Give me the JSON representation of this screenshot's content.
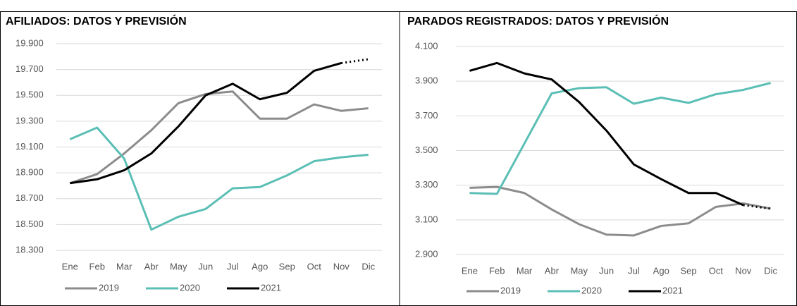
{
  "chart_data": [
    {
      "type": "line",
      "title": "AFILIADOS: DATOS Y PREVISIÓN",
      "categories": [
        "Ene",
        "Feb",
        "Mar",
        "Abr",
        "May",
        "Jun",
        "Jul",
        "Ago",
        "Sep",
        "Oct",
        "Nov",
        "Dic"
      ],
      "series": [
        {
          "name": "2019",
          "color": "#8c8c8c",
          "values": [
            18820,
            18890,
            19050,
            19230,
            19440,
            19510,
            19530,
            19320,
            19320,
            19430,
            19380,
            19400
          ]
        },
        {
          "name": "2020",
          "color": "#5bbfb5",
          "values": [
            19160,
            19250,
            19010,
            18460,
            18560,
            18620,
            18780,
            18790,
            18880,
            18990,
            19020,
            19040
          ]
        },
        {
          "name": "2021",
          "color": "#000000",
          "values": [
            18820,
            18850,
            18920,
            19050,
            19260,
            19500,
            19590,
            19470,
            19520,
            19690,
            19750,
            19780
          ],
          "forecast_from": "Nov"
        }
      ],
      "ylim": [
        18300,
        19900
      ],
      "yticks": [
        {
          "value": 18300,
          "label": "18.300"
        },
        {
          "value": 18500,
          "label": "18.500"
        },
        {
          "value": 18700,
          "label": "18.700"
        },
        {
          "value": 18900,
          "label": "18.900"
        },
        {
          "value": 19100,
          "label": "19.100"
        },
        {
          "value": 19300,
          "label": "19.300"
        },
        {
          "value": 19500,
          "label": "19.500"
        },
        {
          "value": 19700,
          "label": "19.700"
        },
        {
          "value": 19900,
          "label": "19.900"
        }
      ],
      "grid": true
    },
    {
      "type": "line",
      "title": "PARADOS REGISTRADOS: DATOS Y PREVISIÓN",
      "categories": [
        "Ene",
        "Feb",
        "Mar",
        "Abr",
        "May",
        "Jun",
        "Jul",
        "Ago",
        "Sep",
        "Oct",
        "Nov",
        "Dic"
      ],
      "series": [
        {
          "name": "2019",
          "color": "#8c8c8c",
          "values": [
            3285,
            3290,
            3255,
            3160,
            3075,
            3015,
            3010,
            3065,
            3080,
            3175,
            3195,
            3165
          ]
        },
        {
          "name": "2020",
          "color": "#5bbfb5",
          "values": [
            3255,
            3250,
            3540,
            3830,
            3860,
            3865,
            3770,
            3805,
            3775,
            3825,
            3850,
            3890
          ]
        },
        {
          "name": "2021",
          "color": "#000000",
          "values": [
            3960,
            4005,
            3945,
            3910,
            3780,
            3615,
            3420,
            3335,
            3255,
            3255,
            3185,
            3165
          ],
          "forecast_from": "Nov"
        }
      ],
      "ylim": [
        2900,
        4100
      ],
      "yticks": [
        {
          "value": 2900,
          "label": "2.900"
        },
        {
          "value": 3100,
          "label": "3.100"
        },
        {
          "value": 3300,
          "label": "3.300"
        },
        {
          "value": 3500,
          "label": "3.500"
        },
        {
          "value": 3700,
          "label": "3.700"
        },
        {
          "value": 3900,
          "label": "3.900"
        },
        {
          "value": 4100,
          "label": "4.100"
        }
      ],
      "grid": true
    }
  ]
}
